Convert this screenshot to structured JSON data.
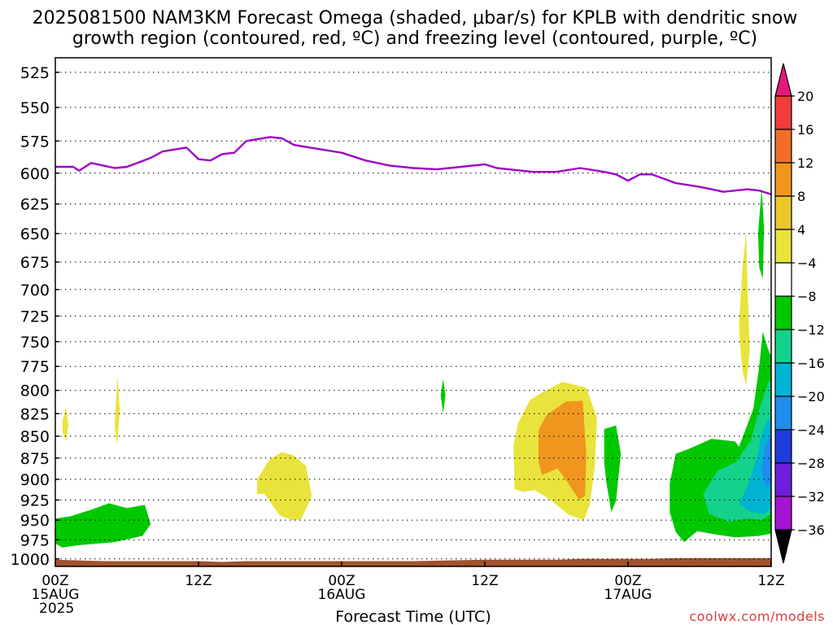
{
  "chart_data": {
    "type": "heatmap",
    "title": [
      "2025081500 NAM3KM Forecast Omega (shaded, μbar/s) for KPLB with dendritic snow",
      "growth region (contoured, red, ºC) and freezing level (contoured, purple, ºC)"
    ],
    "xlabel": "Forecast Time (UTC)",
    "ylabel": "",
    "y_scale": "log-pressure, inverted (hPa)",
    "ylim": [
      1010,
      515
    ],
    "y_ticks": [
      525,
      550,
      575,
      600,
      625,
      650,
      675,
      700,
      725,
      750,
      775,
      800,
      825,
      850,
      875,
      900,
      925,
      950,
      975,
      1000
    ],
    "x_range_hours": [
      0,
      60
    ],
    "x_ticks": [
      {
        "hour": 0,
        "lines": [
          "00Z",
          "15AUG",
          "2025"
        ]
      },
      {
        "hour": 12,
        "lines": [
          "12Z"
        ]
      },
      {
        "hour": 24,
        "lines": [
          "00Z",
          "16AUG"
        ]
      },
      {
        "hour": 36,
        "lines": [
          "12Z"
        ]
      },
      {
        "hour": 48,
        "lines": [
          "00Z",
          "17AUG"
        ]
      },
      {
        "hour": 60,
        "lines": [
          "12Z"
        ]
      }
    ],
    "grid": true,
    "colorbar": {
      "placement": "right",
      "labels": [
        "20",
        "16",
        "12",
        "8",
        "4",
        "−4",
        "−8",
        "−12",
        "−16",
        "−20",
        "−24",
        "−28",
        "−32",
        "−36"
      ],
      "bins": [
        {
          "range": "above 20",
          "color": "#e8187a"
        },
        {
          "range": "16 to 20",
          "color": "#f03c3c"
        },
        {
          "range": "12 to 16",
          "color": "#f06e28"
        },
        {
          "range": "8 to 12",
          "color": "#f0961e"
        },
        {
          "range": "4 to 8",
          "color": "#e8c82a"
        },
        {
          "range": "-4 to 4",
          "color": "#e8e43c"
        },
        {
          "range": "-8 to -4",
          "color": "#ffffff"
        },
        {
          "range": "-12 to -8",
          "color": "#00c800"
        },
        {
          "range": "-16 to -12",
          "color": "#14d28c"
        },
        {
          "range": "-20 to -16",
          "color": "#00b4d2"
        },
        {
          "range": "-24 to -20",
          "color": "#1e8cf0"
        },
        {
          "range": "-28 to -24",
          "color": "#1e3cdc"
        },
        {
          "range": "-32 to -28",
          "color": "#6e1edc"
        },
        {
          "range": "-36 to -32",
          "color": "#a514d2"
        },
        {
          "range": "below -36",
          "color": "#a0a0a0"
        }
      ]
    },
    "freezing_level": {
      "color": "#a000c8",
      "points": [
        [
          0,
          595
        ],
        [
          1.5,
          595
        ],
        [
          2,
          598
        ],
        [
          3,
          592
        ],
        [
          5,
          596
        ],
        [
          6,
          595
        ],
        [
          8,
          588
        ],
        [
          9,
          583
        ],
        [
          11,
          580
        ],
        [
          12,
          589
        ],
        [
          13,
          590
        ],
        [
          14,
          585
        ],
        [
          15,
          584
        ],
        [
          16,
          575
        ],
        [
          18,
          572
        ],
        [
          19,
          573
        ],
        [
          20,
          578
        ],
        [
          24,
          584
        ],
        [
          26,
          590
        ],
        [
          28,
          594
        ],
        [
          30,
          596
        ],
        [
          32,
          597
        ],
        [
          34,
          595
        ],
        [
          36,
          593
        ],
        [
          37,
          596
        ],
        [
          40,
          599
        ],
        [
          42,
          599
        ],
        [
          44,
          596
        ],
        [
          46,
          599
        ],
        [
          47,
          601
        ],
        [
          48,
          606
        ],
        [
          49,
          601
        ],
        [
          50,
          601
        ],
        [
          52,
          608
        ],
        [
          54,
          611
        ],
        [
          55,
          613
        ],
        [
          56,
          615
        ],
        [
          58,
          613
        ],
        [
          59,
          614
        ],
        [
          60,
          617
        ]
      ]
    },
    "regions": [
      {
        "color": "#e8e43c",
        "points": [
          [
            0.6,
            833
          ],
          [
            0.9,
            818
          ],
          [
            1.1,
            838
          ],
          [
            0.9,
            856
          ],
          [
            0.6,
            845
          ]
        ]
      },
      {
        "color": "#e8e43c",
        "points": [
          [
            5.0,
            830
          ],
          [
            5.2,
            785
          ],
          [
            5.4,
            820
          ],
          [
            5.2,
            860
          ],
          [
            5.0,
            845
          ]
        ]
      },
      {
        "color": "#00c800",
        "points": [
          [
            0,
            948
          ],
          [
            1.3,
            945
          ],
          [
            3.0,
            937
          ],
          [
            4.5,
            929
          ],
          [
            6.0,
            935
          ],
          [
            7.5,
            931
          ],
          [
            8.0,
            955
          ],
          [
            7.3,
            970
          ],
          [
            5.0,
            978
          ],
          [
            2.0,
            982
          ],
          [
            0.6,
            985
          ],
          [
            0,
            980
          ]
        ]
      },
      {
        "color": "#e8e43c",
        "points": [
          [
            16.9,
            900
          ],
          [
            18.0,
            876
          ],
          [
            19.0,
            868
          ],
          [
            20.0,
            872
          ],
          [
            21.0,
            884
          ],
          [
            21.5,
            920
          ],
          [
            20.6,
            949
          ],
          [
            19.9,
            950
          ],
          [
            18.8,
            944
          ],
          [
            17.5,
            917
          ],
          [
            16.9,
            918
          ]
        ]
      },
      {
        "color": "#00c800",
        "points": [
          [
            32.5,
            788
          ],
          [
            32.7,
            805
          ],
          [
            32.5,
            825
          ],
          [
            32.3,
            805
          ]
        ]
      },
      {
        "color": "#e8e43c",
        "points": [
          [
            38.4,
            860
          ],
          [
            38.8,
            835
          ],
          [
            39.8,
            810
          ],
          [
            41.0,
            801
          ],
          [
            42.5,
            791
          ],
          [
            44.5,
            797
          ],
          [
            45.4,
            830
          ],
          [
            45.2,
            887
          ],
          [
            44.8,
            930
          ],
          [
            44.3,
            950
          ],
          [
            43.0,
            943
          ],
          [
            41.5,
            925
          ],
          [
            40.2,
            913
          ],
          [
            39.2,
            915
          ],
          [
            38.5,
            912
          ]
        ]
      },
      {
        "color": "#f0961e",
        "points": [
          [
            40.5,
            843
          ],
          [
            41.2,
            826
          ],
          [
            42.8,
            812
          ],
          [
            44.2,
            811
          ],
          [
            44.5,
            870
          ],
          [
            44.4,
            920
          ],
          [
            43.9,
            925
          ],
          [
            43.0,
            905
          ],
          [
            42.1,
            887
          ],
          [
            40.8,
            895
          ],
          [
            40.5,
            880
          ]
        ]
      },
      {
        "color": "#00c800",
        "points": [
          [
            46.0,
            842
          ],
          [
            47.0,
            838
          ],
          [
            47.4,
            870
          ],
          [
            47.0,
            926
          ],
          [
            46.6,
            940
          ],
          [
            46.2,
            905
          ],
          [
            46.0,
            880
          ]
        ]
      },
      {
        "color": "#00c800",
        "points": [
          [
            51.5,
            905
          ],
          [
            52.0,
            870
          ],
          [
            53.0,
            865
          ],
          [
            55.0,
            853
          ],
          [
            57.0,
            856
          ],
          [
            57.3,
            862
          ],
          [
            58.5,
            820
          ],
          [
            59.0,
            775
          ],
          [
            59.3,
            740
          ],
          [
            59.7,
            756
          ],
          [
            60,
            765
          ],
          [
            60,
            967
          ],
          [
            59.0,
            970
          ],
          [
            57.0,
            972
          ],
          [
            55.3,
            968
          ],
          [
            53.8,
            964
          ],
          [
            52.7,
            978
          ],
          [
            52.0,
            965
          ],
          [
            51.5,
            940
          ]
        ]
      },
      {
        "color": "#14d28c",
        "points": [
          [
            54.3,
            918
          ],
          [
            55.5,
            890
          ],
          [
            57.0,
            880
          ],
          [
            58.3,
            855
          ],
          [
            59.0,
            820
          ],
          [
            59.8,
            790
          ],
          [
            60,
            790
          ],
          [
            60,
            942
          ],
          [
            59.2,
            950
          ],
          [
            58.0,
            948
          ],
          [
            56.5,
            952
          ],
          [
            54.8,
            942
          ]
        ]
      },
      {
        "color": "#00b4d2",
        "points": [
          [
            57.3,
            930
          ],
          [
            58.1,
            905
          ],
          [
            58.8,
            875
          ],
          [
            59.2,
            848
          ],
          [
            59.7,
            832
          ],
          [
            60,
            830
          ],
          [
            60,
            935
          ],
          [
            59.4,
            942
          ],
          [
            58.3,
            940
          ]
        ]
      },
      {
        "color": "#1e8cf0",
        "points": [
          [
            59.2,
            890
          ],
          [
            59.5,
            862
          ],
          [
            59.8,
            852
          ],
          [
            60,
            852
          ],
          [
            60,
            905
          ],
          [
            59.6,
            910
          ]
        ]
      },
      {
        "color": "#e8e43c",
        "points": [
          [
            57.3,
            732
          ],
          [
            57.6,
            680
          ],
          [
            57.9,
            648
          ],
          [
            58.0,
            690
          ],
          [
            58.2,
            760
          ],
          [
            57.9,
            795
          ],
          [
            57.6,
            780
          ],
          [
            57.4,
            755
          ]
        ]
      },
      {
        "color": "#00c800",
        "points": [
          [
            58.9,
            650
          ],
          [
            59.2,
            612
          ],
          [
            59.4,
            645
          ],
          [
            59.3,
            690
          ],
          [
            59.0,
            680
          ]
        ]
      }
    ],
    "terrain": {
      "color": "#a0522d",
      "surface": [
        [
          0,
          1001
        ],
        [
          2,
          1002
        ],
        [
          4,
          1003
        ],
        [
          8,
          1003
        ],
        [
          12,
          1003
        ],
        [
          14,
          1004
        ],
        [
          16,
          1003
        ],
        [
          20,
          1003
        ],
        [
          24,
          1003
        ],
        [
          30,
          1003
        ],
        [
          36,
          1001
        ],
        [
          42,
          1001
        ],
        [
          44,
          1000
        ],
        [
          48,
          1000
        ],
        [
          50,
          1000
        ],
        [
          52,
          999
        ],
        [
          56,
          999
        ],
        [
          60,
          999
        ]
      ]
    },
    "annotation": "coolwx.com/models"
  }
}
